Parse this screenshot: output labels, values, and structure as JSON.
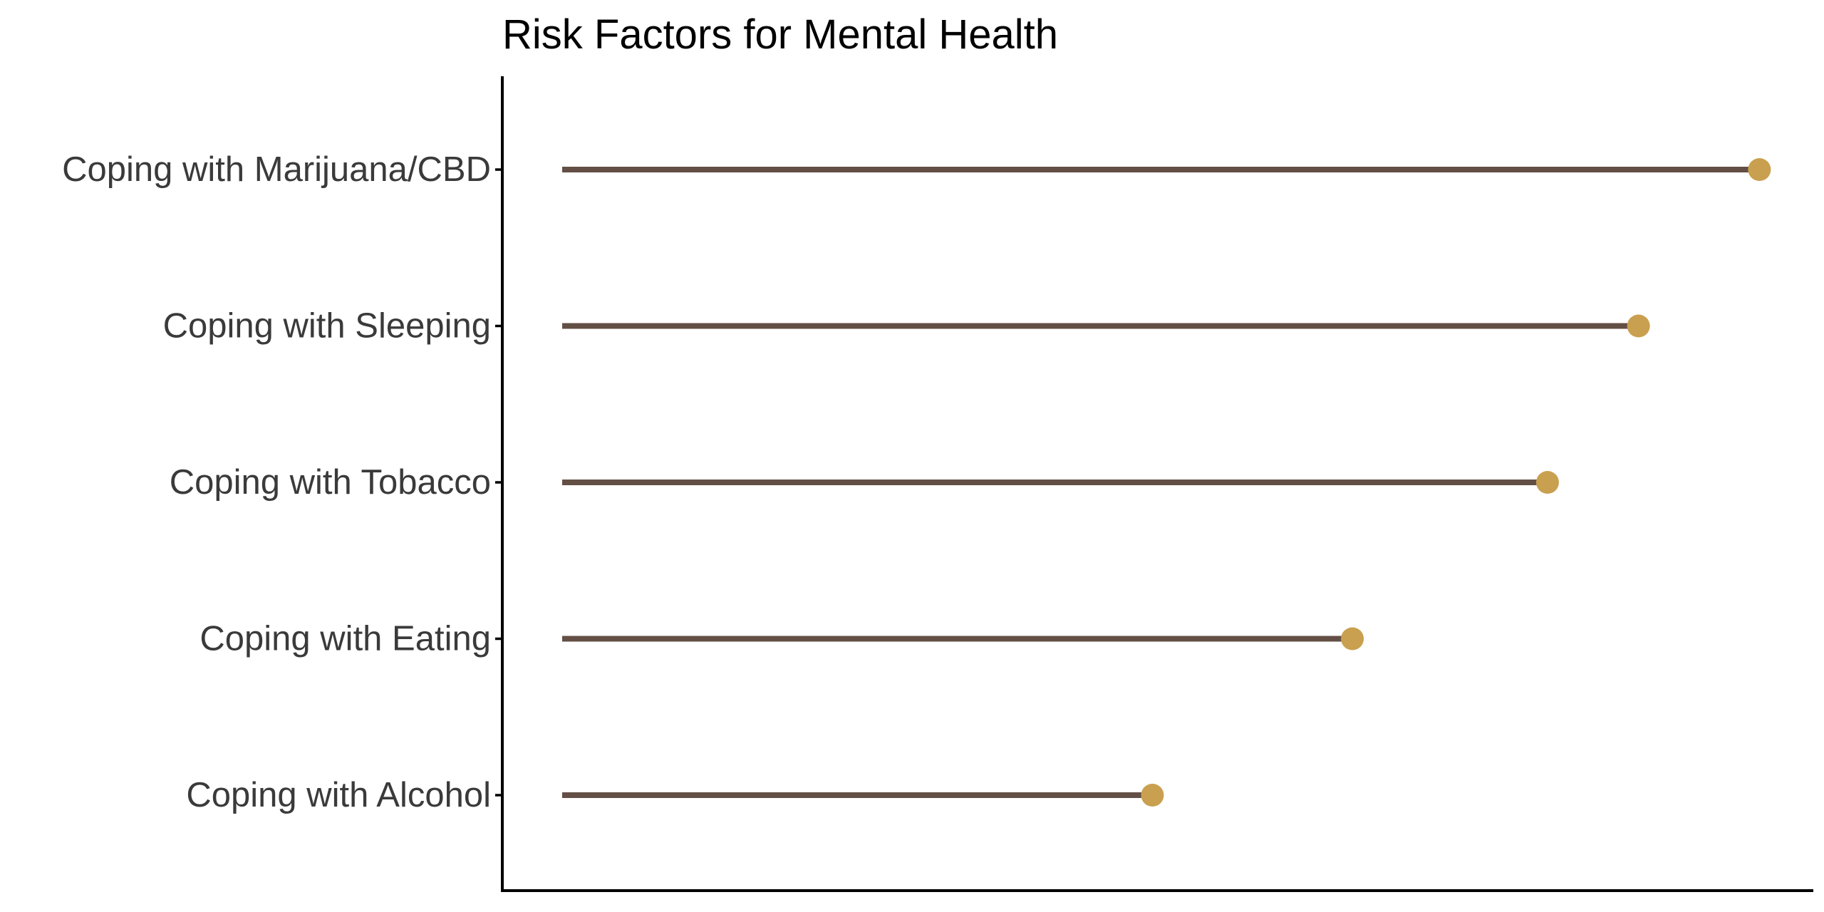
{
  "chart_data": {
    "type": "lollipop",
    "title": "Risk Factors for Mental Health",
    "xlabel": "",
    "ylabel": "",
    "categories": [
      "Coping with Marijuana/CBD",
      "Coping with Sleeping",
      "Coping with Tobacco",
      "Coping with Eating",
      "Coping with Alcohol"
    ],
    "values": [
      1.0,
      0.899,
      0.823,
      0.66,
      0.493
    ],
    "xlim": [
      -0.05,
      1.045
    ],
    "x_axis_ticks_visible": false,
    "grid": false,
    "legend": "none",
    "colors": {
      "stem": "#634f45",
      "point": "#c9a04f",
      "axis": "#000000",
      "label": "#3a3a3a"
    }
  }
}
